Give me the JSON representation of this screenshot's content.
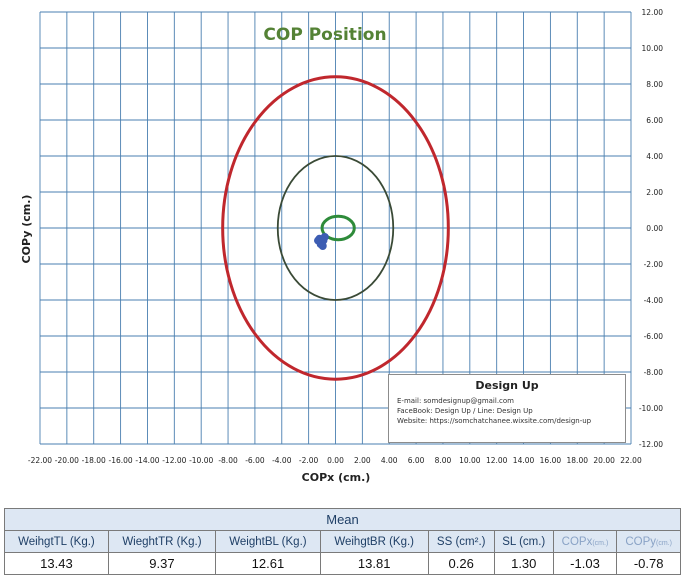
{
  "chart_data": {
    "type": "scatter",
    "title": "COP Position",
    "xlabel": "COPx (cm.)",
    "ylabel": "COPy (cm.)",
    "xlim": [
      -22,
      22
    ],
    "ylim": [
      -12,
      12
    ],
    "x_ticks": [
      "-22.00",
      "-20.00",
      "-18.00",
      "-16.00",
      "-14.00",
      "-12.00",
      "-10.00",
      "-8.00",
      "-6.00",
      "-4.00",
      "-2.00",
      "0.00",
      "2.00",
      "4.00",
      "6.00",
      "8.00",
      "10.00",
      "12.00",
      "14.00",
      "16.00",
      "18.00",
      "20.00",
      "22.00"
    ],
    "y_ticks": [
      "12.00",
      "10.00",
      "8.00",
      "6.00",
      "4.00",
      "2.00",
      "0.00",
      "-2.00",
      "-4.00",
      "-6.00",
      "-8.00",
      "-10.00",
      "-12.00"
    ],
    "grid": true,
    "circles": [
      {
        "cx": 0,
        "cy": 0,
        "rx": 8.4,
        "ry": 8.4,
        "color": "#c0272d"
      },
      {
        "cx": 0,
        "cy": 0,
        "rx": 4.3,
        "ry": 4.0,
        "color": "#3a4a36"
      },
      {
        "cx": 0.2,
        "cy": 0,
        "rx": 1.2,
        "ry": 0.65,
        "color": "#2e8b3a"
      }
    ],
    "points": [
      {
        "x": -1.2,
        "y": -0.6
      },
      {
        "x": -1.0,
        "y": -0.8
      },
      {
        "x": -0.8,
        "y": -0.5
      },
      {
        "x": -1.1,
        "y": -0.9
      },
      {
        "x": -0.9,
        "y": -0.7
      },
      {
        "x": -1.3,
        "y": -0.7
      },
      {
        "x": -0.95,
        "y": -1.0
      }
    ],
    "point_color": "#3d5db3"
  },
  "info_box": {
    "title": "Design Up",
    "email": "E-mail: somdesignup@gmail.com",
    "facebook": "FaceBook: Design Up  /  Line: Design Up",
    "website": "Website:  https://somchatchanee.wixsite.com/design-up"
  },
  "table": {
    "header": "Mean",
    "columns": [
      {
        "main": "WeihgtTL  (Kg.)",
        "unit": "",
        "faded": false
      },
      {
        "main": "WieghtTR (Kg.)",
        "unit": "",
        "faded": false
      },
      {
        "main": "WeightBL  (Kg.)",
        "unit": "",
        "faded": false
      },
      {
        "main": "WeihgtBR  (Kg.)",
        "unit": "",
        "faded": false
      },
      {
        "main": "SS (cm².)",
        "unit": "",
        "faded": false
      },
      {
        "main": "SL (cm.)",
        "unit": "",
        "faded": false
      },
      {
        "main": "COPx",
        "unit": "(cm.)",
        "faded": true
      },
      {
        "main": "COPy",
        "unit": "(cm.)",
        "faded": true
      }
    ],
    "values": [
      "13.43",
      "9.37",
      "12.61",
      "13.81",
      "0.26",
      "1.30",
      "-1.03",
      "-0.78"
    ]
  },
  "colors": {
    "grid": "#4a7fb0",
    "title": "#548235",
    "header_bg": "#dde7f3"
  }
}
